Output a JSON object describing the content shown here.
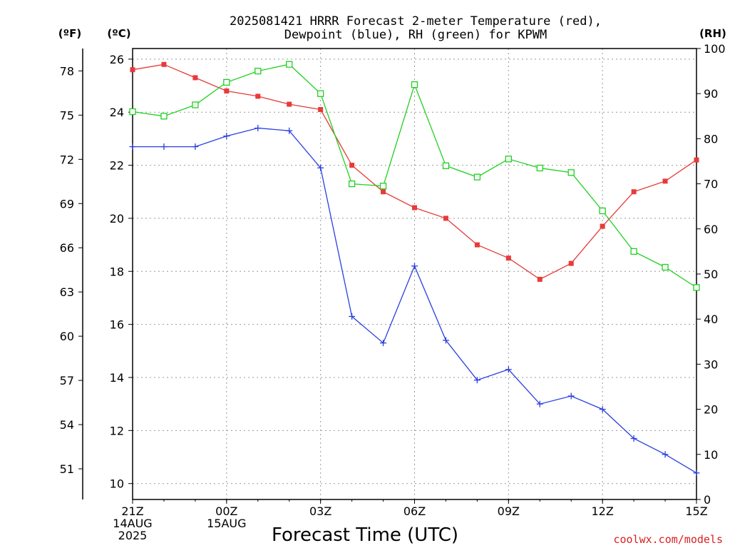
{
  "chart_data": {
    "type": "line",
    "title_line1": "2025081421 HRRR Forecast 2-meter Temperature (red),",
    "title_line2": "Dewpoint (blue), RH (green) for KPWM",
    "xlabel": "Forecast Time (UTC)",
    "units": {
      "fahrenheit": "(ºF)",
      "celsius": "(ºC)",
      "rh": "(RH)"
    },
    "credit": "coolwx.com/models",
    "x_hours_after_start": [
      0,
      1,
      2,
      3,
      4,
      5,
      6,
      7,
      8,
      9,
      10,
      11,
      12,
      13,
      14,
      15,
      16,
      17,
      18
    ],
    "x_tick_labels": [
      {
        "hour": 0,
        "lines": [
          "21Z",
          "14AUG",
          "2025"
        ]
      },
      {
        "hour": 3,
        "lines": [
          "00Z",
          "15AUG"
        ]
      },
      {
        "hour": 6,
        "lines": [
          "03Z"
        ]
      },
      {
        "hour": 9,
        "lines": [
          "06Z"
        ]
      },
      {
        "hour": 12,
        "lines": [
          "09Z"
        ]
      },
      {
        "hour": 15,
        "lines": [
          "12Z"
        ]
      },
      {
        "hour": 18,
        "lines": [
          "15Z"
        ]
      }
    ],
    "celsius_axis": {
      "range": [
        9.4,
        26.4
      ],
      "ticks": [
        10,
        12,
        14,
        16,
        18,
        20,
        22,
        24,
        26
      ]
    },
    "fahrenheit_axis": {
      "ticks": [
        51,
        54,
        57,
        60,
        63,
        66,
        69,
        72,
        75,
        78
      ]
    },
    "rh_axis": {
      "range": [
        0,
        100
      ],
      "ticks": [
        0,
        10,
        20,
        30,
        40,
        50,
        60,
        70,
        80,
        90,
        100
      ]
    },
    "series": [
      {
        "name": "Temperature",
        "axis": "celsius",
        "color": "#e83a3a",
        "marker": "filled-square",
        "values": [
          25.6,
          25.8,
          25.3,
          24.8,
          24.6,
          24.3,
          24.1,
          22.0,
          21.0,
          20.4,
          20.0,
          19.0,
          18.5,
          17.7,
          18.3,
          19.7,
          21.0,
          21.4,
          22.2
        ]
      },
      {
        "name": "Dewpoint",
        "axis": "celsius",
        "color": "#2a3fe0",
        "marker": "plus",
        "values": [
          22.7,
          22.7,
          22.7,
          23.1,
          23.4,
          23.3,
          21.9,
          16.3,
          15.3,
          18.2,
          15.4,
          13.9,
          14.3,
          13.0,
          13.3,
          12.8,
          11.7,
          11.1,
          10.4
        ]
      },
      {
        "name": "RH",
        "axis": "rh",
        "color": "#20d020",
        "marker": "open-square",
        "values": [
          86,
          85,
          87.5,
          92.5,
          95,
          96.5,
          90,
          70,
          69.5,
          92,
          74,
          71.5,
          75.5,
          73.5,
          72.5,
          64,
          55,
          51.5,
          47
        ]
      }
    ],
    "grid": "dotted"
  }
}
